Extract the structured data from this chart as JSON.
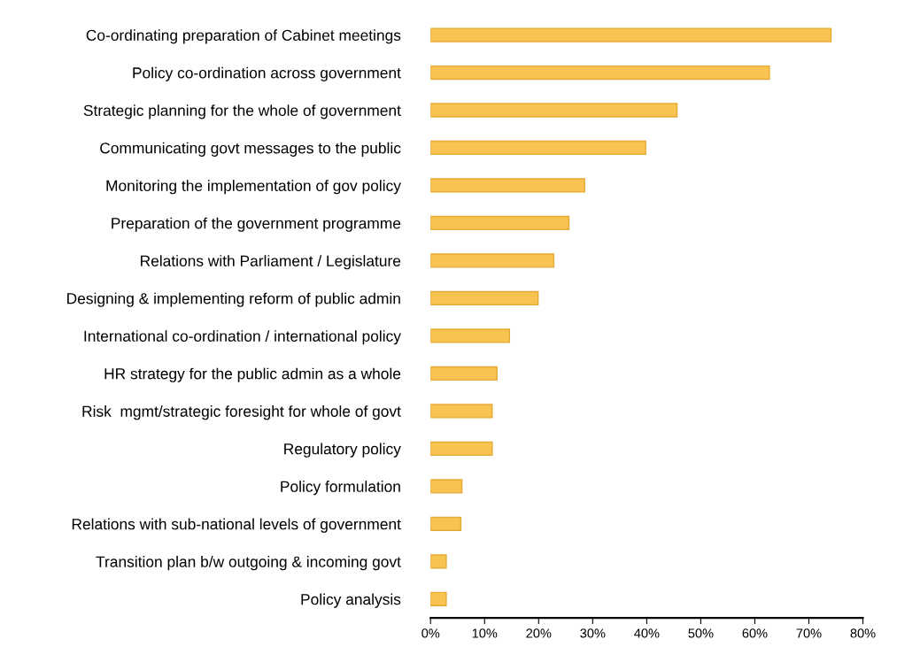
{
  "chart_data": {
    "type": "bar",
    "orientation": "horizontal",
    "categories": [
      "Co-ordinating preparation of Cabinet meetings",
      "Policy co-ordination across government",
      "Strategic planning for the whole of government",
      "Communicating govt messages to the public",
      "Monitoring the implementation of gov policy",
      "Preparation of the government programme",
      "Relations with Parliament / Legislature",
      "Designing & implementing reform of public admin",
      "International co-ordination / international policy",
      "HR strategy for the public admin as a whole",
      "Risk  mgmt/strategic foresight for whole of govt",
      "Regulatory policy",
      "Policy formulation",
      "Relations with sub-national levels of government",
      "Transition plan b/w outgoing & incoming govt",
      "Policy analysis"
    ],
    "values": [
      74.1,
      62.7,
      45.6,
      39.8,
      28.5,
      25.6,
      22.8,
      19.9,
      14.6,
      12.3,
      11.4,
      11.4,
      5.8,
      5.6,
      2.9,
      2.9
    ],
    "color": "#f9c352",
    "xlim": [
      0,
      80
    ],
    "xticks": [
      {
        "value": 0,
        "label": "0%"
      },
      {
        "value": 10,
        "label": "10%"
      },
      {
        "value": 20,
        "label": "20%"
      },
      {
        "value": 30,
        "label": "30%"
      },
      {
        "value": 40,
        "label": "40%"
      },
      {
        "value": 50,
        "label": "50%"
      },
      {
        "value": 60,
        "label": "60%"
      },
      {
        "value": 70,
        "label": "70%"
      },
      {
        "value": 80,
        "label": "80%"
      }
    ],
    "grid": false,
    "legend": false
  }
}
